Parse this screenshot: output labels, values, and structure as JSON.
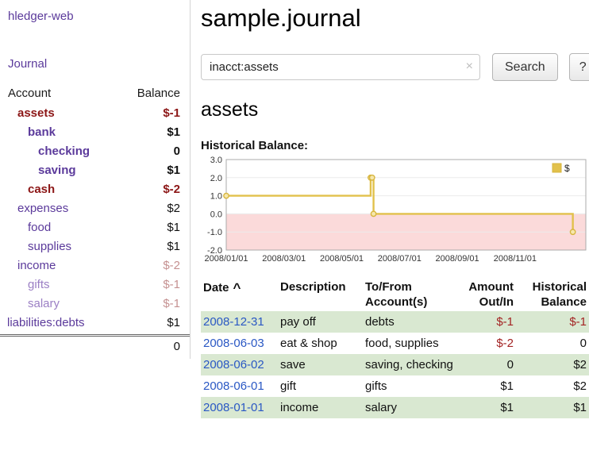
{
  "colors": {
    "link_purple": "#5b3a9b",
    "negative_red": "#8c1616",
    "muted_red": "#c59191",
    "date_blue": "#2a58c4",
    "row_green": "#d9e8d1"
  },
  "sidebar": {
    "app_title": "hledger-web",
    "nav": {
      "journal": "Journal"
    },
    "accounts": {
      "header": {
        "account": "Account",
        "balance": "Balance"
      },
      "rows": [
        {
          "name": "assets",
          "balance": "$-1",
          "indent": 1,
          "emph": true,
          "negative": true,
          "balance_negative": true
        },
        {
          "name": "bank",
          "balance": "$1",
          "indent": 2,
          "emph": true
        },
        {
          "name": "checking",
          "balance": "0",
          "indent": 3,
          "emph": true
        },
        {
          "name": "saving",
          "balance": "$1",
          "indent": 3,
          "emph": true
        },
        {
          "name": "cash",
          "balance": "$-2",
          "indent": 2,
          "emph": true,
          "negative": true,
          "balance_negative": true
        },
        {
          "name": "expenses",
          "balance": "$2",
          "indent": 1
        },
        {
          "name": "food",
          "balance": "$1",
          "indent": 2
        },
        {
          "name": "supplies",
          "balance": "$1",
          "indent": 2
        },
        {
          "name": "income",
          "balance": "$-2",
          "indent": 1,
          "balance_muted": true
        },
        {
          "name": "gifts",
          "balance": "$-1",
          "indent": 2,
          "muted": true,
          "balance_muted": true
        },
        {
          "name": "salary",
          "balance": "$-1",
          "indent": 2,
          "muted": true,
          "balance_muted": true
        },
        {
          "name": "liabilities:debts",
          "balance": "$1",
          "indent": 0
        }
      ],
      "total": "0"
    }
  },
  "main": {
    "title": "sample.journal",
    "search": {
      "value": "inacct:assets",
      "clear_icon": "×",
      "button_label": "Search",
      "help_label": "?"
    },
    "account_heading": "assets",
    "chart_heading": "Historical Balance:",
    "register": {
      "sort_indicator": "^",
      "headers": [
        {
          "line1": "Date",
          "line2": ""
        },
        {
          "line1": "Description",
          "line2": ""
        },
        {
          "line1": "To/From",
          "line2": "Account(s)"
        },
        {
          "line1": "Amount",
          "line2": "Out/In"
        },
        {
          "line1": "Historical",
          "line2": "Balance"
        }
      ],
      "rows": [
        {
          "date": "2008-12-31",
          "description": "pay off",
          "accounts": "debts",
          "amount": "$-1",
          "amount_negative": true,
          "balance": "$-1",
          "balance_negative": true,
          "shaded": true
        },
        {
          "date": "2008-06-03",
          "description": "eat & shop",
          "accounts": "food, supplies",
          "amount": "$-2",
          "amount_negative": true,
          "balance": "0",
          "balance_negative": false,
          "shaded": false
        },
        {
          "date": "2008-06-02",
          "description": "save",
          "accounts": "saving, checking",
          "amount": "0",
          "amount_negative": false,
          "balance": "$2",
          "balance_negative": false,
          "shaded": true
        },
        {
          "date": "2008-06-01",
          "description": "gift",
          "accounts": "gifts",
          "amount": "$1",
          "amount_negative": false,
          "balance": "$2",
          "balance_negative": false,
          "shaded": false
        },
        {
          "date": "2008-01-01",
          "description": "income",
          "accounts": "salary",
          "amount": "$1",
          "amount_negative": false,
          "balance": "$1",
          "balance_negative": false,
          "shaded": true
        }
      ]
    }
  },
  "chart_data": {
    "type": "line",
    "step": true,
    "title": "Historical Balance of assets",
    "series": [
      {
        "name": "$",
        "color": "#e2c14b",
        "dates": [
          "2008-01-01",
          "2008-06-01",
          "2008-06-02",
          "2008-06-03",
          "2008-12-31"
        ],
        "points": [
          [
            0,
            1
          ],
          [
            5.0,
            2
          ],
          [
            5.05,
            2
          ],
          [
            5.1,
            0
          ],
          [
            12.0,
            -1
          ]
        ]
      }
    ],
    "xlim": [
      0,
      12.45
    ],
    "ylim": [
      -2,
      3
    ],
    "y_ticks": [
      {
        "label": "3.0",
        "value": 3
      },
      {
        "label": "2.0",
        "value": 2
      },
      {
        "label": "1.0",
        "value": 1
      },
      {
        "label": "0.0",
        "value": 0
      },
      {
        "label": "-1.0",
        "value": -1
      },
      {
        "label": "-2.0",
        "value": -2
      }
    ],
    "x_ticks": [
      {
        "label": "2008/01/01",
        "value": 0
      },
      {
        "label": "2008/03/01",
        "value": 2
      },
      {
        "label": "2008/05/01",
        "value": 4
      },
      {
        "label": "2008/07/01",
        "value": 6
      },
      {
        "label": "2008/09/01",
        "value": 8
      },
      {
        "label": "2008/11/01",
        "value": 10
      }
    ],
    "legend": {
      "label": "$",
      "position": "top-right",
      "swatch_color": "#e2c14b"
    },
    "grid": true,
    "negative_fill": "#fbdada",
    "marker_fill": "#f6e7ac",
    "marker_stroke": "#d7b53e",
    "grid_color": "#ebebeb",
    "border_color": "#ababab"
  }
}
